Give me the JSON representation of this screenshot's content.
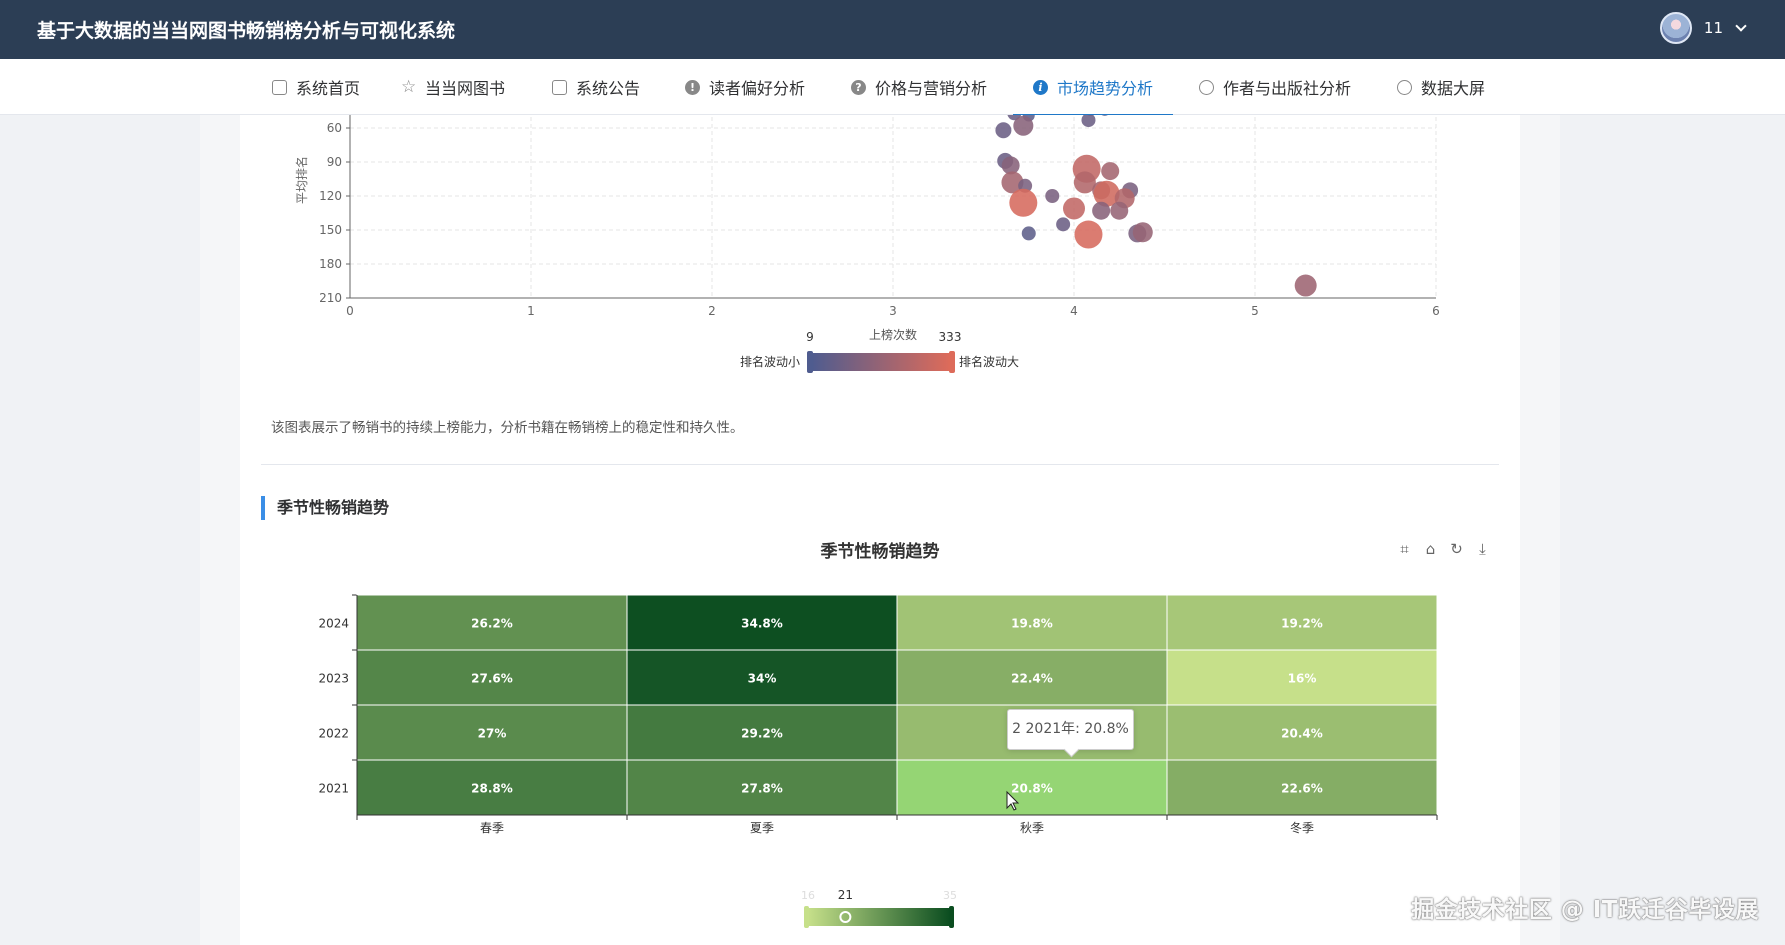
{
  "header": {
    "app_title": "基于大数据的当当网图书畅销榜分析与可视化系统",
    "username": "11"
  },
  "nav": {
    "items": [
      {
        "label": "系统首页",
        "icon": "home-icon"
      },
      {
        "label": "当当网图书",
        "icon": "star-icon"
      },
      {
        "label": "系统公告",
        "icon": "bag-icon"
      },
      {
        "label": "读者偏好分析",
        "icon": "warning-icon"
      },
      {
        "label": "价格与营销分析",
        "icon": "help-icon"
      },
      {
        "label": "市场趋势分析",
        "icon": "info-icon",
        "active": true
      },
      {
        "label": "作者与出版社分析",
        "icon": "target-icon"
      },
      {
        "label": "数据大屏",
        "icon": "smile-icon"
      }
    ]
  },
  "scatter_section": {
    "description": "该图表展示了畅销书的持续上榜能力，分析书籍在畅销榜上的稳定性和持久性。"
  },
  "heatmap_section": {
    "section_title": "季节性畅销趋势",
    "tooltip": "2 2021年: 20.8%"
  },
  "watermark": "掘金技术社区 @ IT跃迁谷毕设展",
  "chart_data": [
    {
      "type": "scatter",
      "title": "",
      "ylabel": "平均排名",
      "x_ticks": [
        0,
        1,
        2,
        3,
        4,
        5,
        6
      ],
      "y_ticks": [
        60,
        90,
        120,
        150,
        180,
        210
      ],
      "xlim": [
        0,
        6
      ],
      "ylim_inverted": [
        30,
        210
      ],
      "visual_map": {
        "title": "上榜次数",
        "min": 9,
        "max": 333,
        "low_label": "排名波动小",
        "high_label": "排名波动大",
        "color_low": "#4f5c8f",
        "color_high": "#dd6b5a"
      },
      "points": [
        {
          "x": 3.65,
          "y": 30,
          "s": 5,
          "c": 0.2
        },
        {
          "x": 3.7,
          "y": 40,
          "s": 6,
          "c": 0.1
        },
        {
          "x": 3.93,
          "y": 36,
          "s": 4,
          "c": 0.1
        },
        {
          "x": 4.05,
          "y": 42,
          "s": 6,
          "c": 0.1
        },
        {
          "x": 4.09,
          "y": 43,
          "s": 7,
          "c": 0.2
        },
        {
          "x": 4.17,
          "y": 44,
          "s": 6,
          "c": 0.1
        },
        {
          "x": 3.67,
          "y": 47,
          "s": 7,
          "c": 0.2
        },
        {
          "x": 3.75,
          "y": 49,
          "s": 6,
          "c": 0.1
        },
        {
          "x": 4.08,
          "y": 53,
          "s": 7,
          "c": 0.2
        },
        {
          "x": 3.72,
          "y": 58,
          "s": 10,
          "c": 0.4
        },
        {
          "x": 3.61,
          "y": 62,
          "s": 8,
          "c": 0.2
        },
        {
          "x": 3.62,
          "y": 89,
          "s": 8,
          "c": 0.2
        },
        {
          "x": 3.65,
          "y": 93,
          "s": 9,
          "c": 0.4
        },
        {
          "x": 4.07,
          "y": 96,
          "s": 14,
          "c": 0.8
        },
        {
          "x": 4.2,
          "y": 98,
          "s": 9,
          "c": 0.6
        },
        {
          "x": 3.66,
          "y": 108,
          "s": 11,
          "c": 0.6
        },
        {
          "x": 4.06,
          "y": 108,
          "s": 11,
          "c": 0.7
        },
        {
          "x": 3.73,
          "y": 111,
          "s": 7,
          "c": 0.3
        },
        {
          "x": 4.15,
          "y": 115,
          "s": 9,
          "c": 0.6
        },
        {
          "x": 4.31,
          "y": 115,
          "s": 8,
          "c": 0.3
        },
        {
          "x": 4.18,
          "y": 118,
          "s": 13,
          "c": 0.9
        },
        {
          "x": 3.72,
          "y": 126,
          "s": 14,
          "c": 0.95
        },
        {
          "x": 3.88,
          "y": 120,
          "s": 7,
          "c": 0.3
        },
        {
          "x": 4.28,
          "y": 122,
          "s": 10,
          "c": 0.7
        },
        {
          "x": 4.0,
          "y": 131,
          "s": 11,
          "c": 0.8
        },
        {
          "x": 4.15,
          "y": 133,
          "s": 9,
          "c": 0.4
        },
        {
          "x": 4.25,
          "y": 133,
          "s": 9,
          "c": 0.5
        },
        {
          "x": 3.94,
          "y": 145,
          "s": 7,
          "c": 0.2
        },
        {
          "x": 3.75,
          "y": 153,
          "s": 7,
          "c": 0.1
        },
        {
          "x": 4.08,
          "y": 154,
          "s": 14,
          "c": 0.95
        },
        {
          "x": 4.35,
          "y": 153,
          "s": 9,
          "c": 0.3
        },
        {
          "x": 4.38,
          "y": 152,
          "s": 10,
          "c": 0.5
        },
        {
          "x": 5.28,
          "y": 199,
          "s": 11,
          "c": 0.55
        }
      ]
    },
    {
      "type": "heatmap",
      "title": "季节性畅销趋势",
      "categories": [
        "春季",
        "夏季",
        "秋季",
        "冬季"
      ],
      "years": [
        "2024",
        "2023",
        "2022",
        "2021"
      ],
      "values": [
        [
          26.2,
          34.8,
          19.8,
          19.2
        ],
        [
          27.6,
          34.0,
          22.4,
          16.0
        ],
        [
          27.0,
          29.2,
          20.8,
          20.4
        ],
        [
          28.8,
          27.8,
          20.8,
          22.6
        ]
      ],
      "labels": [
        [
          "26.2%",
          "34.8%",
          "19.8%",
          "19.2%"
        ],
        [
          "27.6%",
          "34%",
          "22.4%",
          "16%"
        ],
        [
          "27%",
          "29.2%",
          "",
          "20.4%"
        ],
        [
          "28.8%",
          "27.8%",
          "20.8%",
          "22.6%"
        ]
      ],
      "visual_map": {
        "min": 16,
        "max": 35,
        "min_label": "16",
        "max_label": "35",
        "current": 21,
        "color_low": "#c6e08a",
        "color_high": "#0b4d20"
      }
    }
  ]
}
